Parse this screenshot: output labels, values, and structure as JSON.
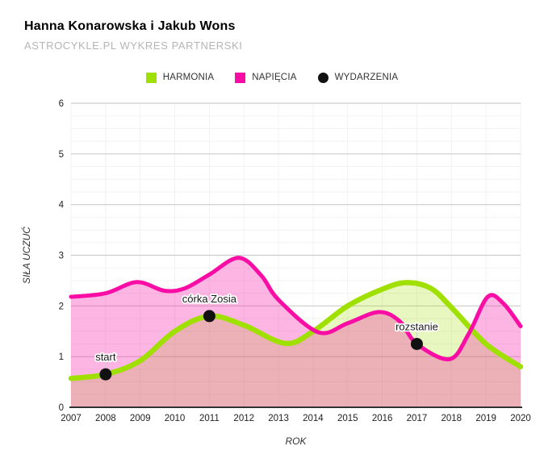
{
  "header": {
    "title": "Hanna Konarowska i Jakub Wons",
    "subtitle": "ASTROCYKLE.PL WYKRES PARTNERSKI"
  },
  "legend": [
    {
      "label": "HARMONIA",
      "color": "#9fe000",
      "shape": "square"
    },
    {
      "label": "NAPIĘCIA",
      "color": "#f90da5",
      "shape": "square"
    },
    {
      "label": "WYDARZENIA",
      "color": "#111111",
      "shape": "circle"
    }
  ],
  "chart_data": {
    "type": "area",
    "title": "Hanna Konarowska i Jakub Wons",
    "subtitle": "ASTROCYKLE.PL WYKRES PARTNERSKI",
    "xlabel": "ROK",
    "ylabel": "SIŁA UCZUĆ",
    "xlim": [
      2007,
      2020
    ],
    "ylim": [
      0,
      6
    ],
    "x_ticks": [
      2007,
      2008,
      2009,
      2010,
      2011,
      2012,
      2013,
      2014,
      2015,
      2016,
      2017,
      2018,
      2019,
      2020
    ],
    "y_ticks": [
      0,
      1,
      2,
      3,
      4,
      5,
      6
    ],
    "grid": {
      "h_major_color": "#cccccc",
      "h_minor_color": "#f2f2f2",
      "v_color": "#f2f2f2",
      "minor_step": 0.25,
      "axis_color": "#333333"
    },
    "series": [
      {
        "name": "HARMONIA",
        "color": "#9fe000",
        "fill_opacity": 0.25,
        "line_width": 6.5,
        "points": [
          [
            2007,
            0.57
          ],
          [
            2008,
            0.65
          ],
          [
            2009,
            0.92
          ],
          [
            2010,
            1.5
          ],
          [
            2011,
            1.8
          ],
          [
            2012,
            1.62
          ],
          [
            2013.2,
            1.26
          ],
          [
            2014,
            1.5
          ],
          [
            2015,
            2.0
          ],
          [
            2016,
            2.33
          ],
          [
            2016.7,
            2.46
          ],
          [
            2017.4,
            2.35
          ],
          [
            2018,
            1.97
          ],
          [
            2019,
            1.25
          ],
          [
            2020,
            0.8
          ]
        ]
      },
      {
        "name": "NAPIĘCIA",
        "color": "#f90da5",
        "fill_opacity": 0.3,
        "line_width": 5,
        "points": [
          [
            2007,
            2.18
          ],
          [
            2008,
            2.25
          ],
          [
            2008.9,
            2.47
          ],
          [
            2009.7,
            2.3
          ],
          [
            2010.3,
            2.35
          ],
          [
            2011,
            2.62
          ],
          [
            2011.85,
            2.95
          ],
          [
            2012.5,
            2.6
          ],
          [
            2013,
            2.12
          ],
          [
            2014.15,
            1.48
          ],
          [
            2015,
            1.66
          ],
          [
            2015.9,
            1.88
          ],
          [
            2016.5,
            1.7
          ],
          [
            2017,
            1.25
          ],
          [
            2017.95,
            0.95
          ],
          [
            2018.5,
            1.45
          ],
          [
            2019.05,
            2.18
          ],
          [
            2019.5,
            2.05
          ],
          [
            2020,
            1.6
          ]
        ]
      }
    ],
    "events": [
      {
        "label": "start",
        "x": 2008,
        "y": 0.65
      },
      {
        "label": "córka Zosia",
        "x": 2011,
        "y": 1.8
      },
      {
        "label": "rozstanie",
        "x": 2017,
        "y": 1.25
      }
    ],
    "event_color": "#111111",
    "legend_position": "top"
  }
}
